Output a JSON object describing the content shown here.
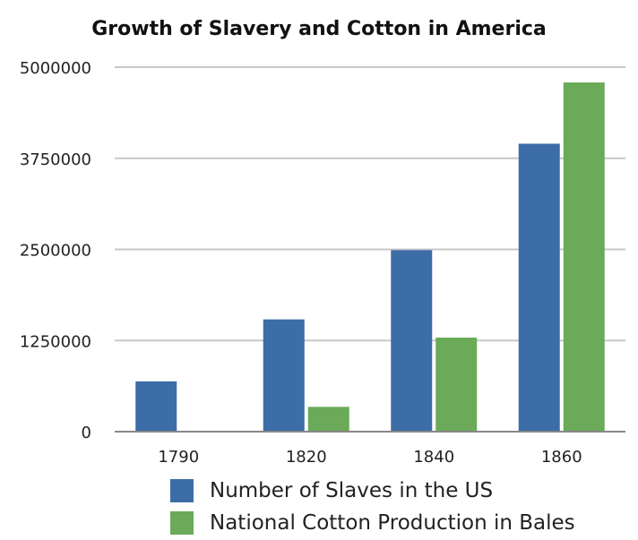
{
  "chart_data": {
    "type": "bar",
    "title": "Growth of Slavery and Cotton in America",
    "categories": [
      "1790",
      "1820",
      "1840",
      "1860"
    ],
    "series": [
      {
        "name": "Number of Slaves in the US",
        "color": "#3d6da7",
        "values": [
          690000,
          1540000,
          2490000,
          3950000
        ]
      },
      {
        "name": "National Cotton Production in Bales",
        "color": "#6aaa58",
        "values": [
          3000,
          340000,
          1290000,
          4790000
        ]
      }
    ],
    "y_ticks": [
      "0",
      "1250000",
      "2500000",
      "3750000",
      "5000000"
    ],
    "ylim": [
      0,
      5000000
    ],
    "grid": true,
    "legend": "bottom"
  }
}
